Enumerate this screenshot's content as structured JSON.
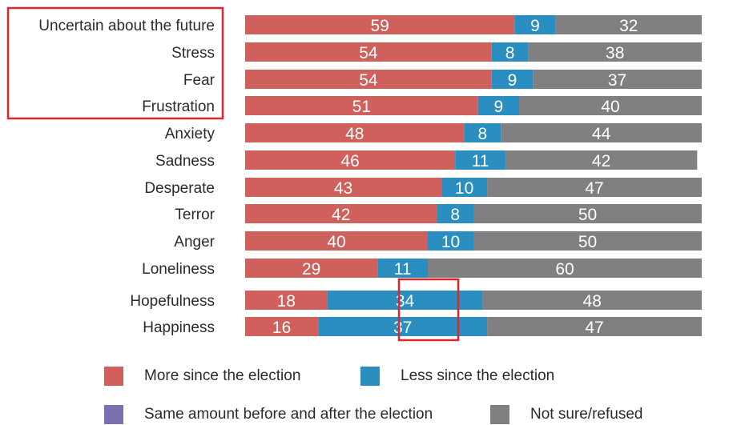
{
  "chart_data": {
    "type": "bar",
    "orientation": "horizontal",
    "stacked": true,
    "categories": [
      "Uncertain about the future",
      "Stress",
      "Fear",
      "Frustration",
      "Anxiety",
      "Sadness",
      "Desperate",
      "Terror",
      "Anger",
      "Loneliness",
      "Hopefulness",
      "Happiness"
    ],
    "series": [
      {
        "name": "More since the election",
        "color": "#d0605c",
        "values": [
          59,
          54,
          54,
          51,
          48,
          46,
          43,
          42,
          40,
          29,
          18,
          16
        ]
      },
      {
        "name": "Less since the election",
        "color": "#2a8fc0",
        "values": [
          9,
          8,
          9,
          9,
          8,
          11,
          10,
          8,
          10,
          11,
          34,
          37
        ]
      },
      {
        "name": "Same amount before and after the election",
        "color": "#7b6fb0",
        "values": [
          0,
          0,
          0,
          0,
          0,
          0,
          0,
          0,
          0,
          0,
          0,
          0
        ]
      },
      {
        "name": "Not sure/refused",
        "color": "#808083",
        "values": [
          32,
          38,
          37,
          40,
          44,
          42,
          47,
          50,
          50,
          60,
          48,
          47
        ]
      }
    ],
    "xlim": [
      0,
      100
    ],
    "grid": false,
    "legend_position": "bottom",
    "highlight_color": "#e0262b"
  }
}
